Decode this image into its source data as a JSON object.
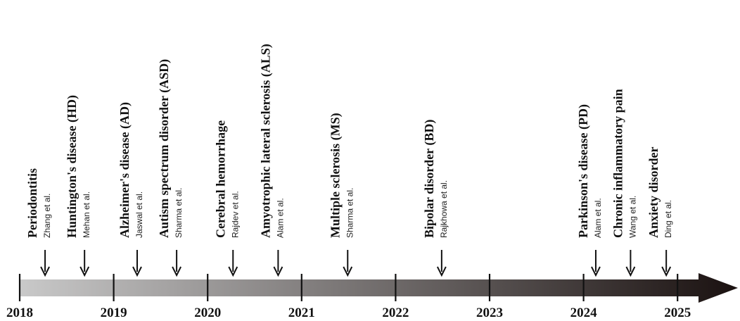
{
  "timeline": {
    "years": [
      "2018",
      "2019",
      "2020",
      "2021",
      "2022",
      "2023",
      "2024",
      "2025"
    ],
    "events": [
      {
        "disease": "Periodontitis",
        "author": "Zhang et al.",
        "year": 2018.27
      },
      {
        "disease": "Huntington's disease (HD)",
        "author": "Mehan et al.",
        "year": 2018.69
      },
      {
        "disease": "Alzheimer's disease (AD)",
        "author": "Jaswal et al.",
        "year": 2019.25
      },
      {
        "disease": "Autism spectrum disorder (ASD)",
        "author": "Sharma et al.",
        "year": 2019.67
      },
      {
        "disease": "Cerebral hemorrhage",
        "author": "Rajdev et al.",
        "year": 2020.27
      },
      {
        "disease": "Amyotrophic lateral sclerosis (ALS)",
        "author": "Alam et al.",
        "year": 2020.75
      },
      {
        "disease": "Multiple sclerosis (MS)",
        "author": "Sharma et al.",
        "year": 2021.49
      },
      {
        "disease": "Bipolar disorder (BD)",
        "author": "Rajkhowa et al.",
        "year": 2022.49
      },
      {
        "disease": "Parkinson's disease (PD)",
        "author": "Alam et al.",
        "year": 2024.13
      },
      {
        "disease": "Chronic inflammatory pain",
        "author": "Wang et al.",
        "year": 2024.5
      },
      {
        "disease": "Anxiety disorder",
        "author": "Ding et al.",
        "year": 2024.88
      }
    ]
  },
  "colors": {
    "bar_start": "#c9c9c9",
    "bar_end": "#1a1110",
    "text": "#111111",
    "tick": "#111111"
  }
}
